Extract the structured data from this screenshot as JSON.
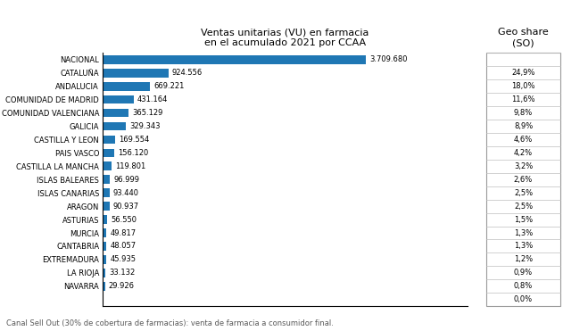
{
  "chart_data": {
    "type": "bar",
    "orientation": "horizontal",
    "title": "Ventas unitarias (VU) en farmacia\nen el acumulado 2021 por CCAA",
    "categories": [
      "NACIONAL",
      "CATALUÑA",
      "ANDALUCIA",
      "COMUNIDAD DE MADRID",
      "COMUNIDAD VALENCIANA",
      "GALICIA",
      "CASTILLA Y LEON",
      "PAIS VASCO",
      "CASTILLA LA MANCHA",
      "ISLAS BALEARES",
      "ISLAS CANARIAS",
      "ARAGON",
      "ASTURIAS",
      "MURCIA",
      "CANTABRIA",
      "EXTREMADURA",
      "LA RIOJA",
      "NAVARRA"
    ],
    "values": [
      3709680,
      924556,
      669221,
      431164,
      365129,
      329343,
      169554,
      156120,
      119801,
      96999,
      93440,
      90937,
      56550,
      49817,
      48057,
      45935,
      33132,
      29926
    ],
    "value_labels": [
      "3.709.680",
      "924.556",
      "669.221",
      "431.164",
      "365.129",
      "329.343",
      "169.554",
      "156.120",
      "119.801",
      "96.999",
      "93.440",
      "90.937",
      "56.550",
      "49.817",
      "48.057",
      "45.935",
      "33.132",
      "29.926"
    ],
    "data_labels": true,
    "xlim": [
      0,
      5148000
    ],
    "tick_labels": "y",
    "grid": false,
    "geo_shares_title": "Geo share\n(SO)",
    "geo_shares": [
      null,
      "24,9%",
      "18,0%",
      "11,6%",
      "9,8%",
      "8,9%",
      "4,6%",
      "4,2%",
      "3,2%",
      "2,6%",
      "2,5%",
      "2,5%",
      "1,5%",
      "1,3%",
      "1,3%",
      "1,2%",
      "0,9%",
      "0,8%"
    ],
    "geo_share_extra": "0,0%",
    "footnote": "Canal Sell Out (30% de cobertura de farmacias): venta de farmacia a consumidor final."
  }
}
